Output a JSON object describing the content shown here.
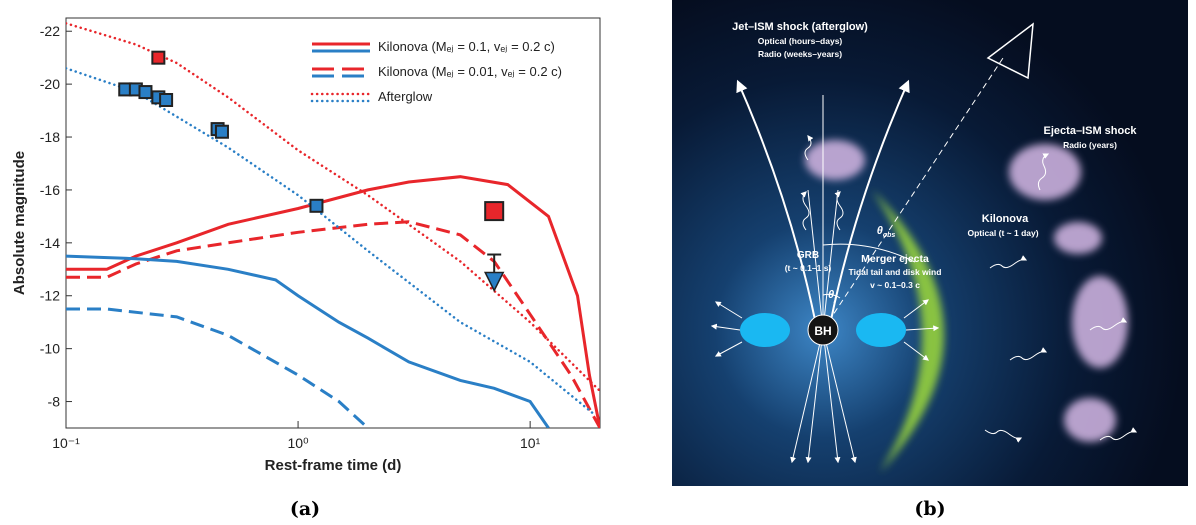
{
  "chart_data": {
    "type": "line",
    "x_label": "Rest-frame time (d)",
    "y_label": "Absolute magnitude",
    "log_x": true,
    "xlim": [
      0.1,
      20
    ],
    "ylim": [
      -7,
      -22.5
    ],
    "xticks": [
      {
        "value": 0.1,
        "label": "10⁻¹"
      },
      {
        "value": 1,
        "label": "10⁰"
      },
      {
        "value": 10,
        "label": "10¹"
      }
    ],
    "yticks": [
      -22,
      -20,
      -18,
      -16,
      -14,
      -12,
      -10,
      -8
    ],
    "legend_position": "upper right",
    "legend": [
      {
        "name": "Kilonova (Mₑⱼ = 0.1, vₑⱼ = 0.2 c)",
        "style": "solid",
        "colors": [
          "#e8262b",
          "#2a7fc6"
        ]
      },
      {
        "name": "Kilonova (Mₑⱼ = 0.01, vₑⱼ = 0.2 c)",
        "style": "dashed",
        "colors": [
          "#e8262b",
          "#2a7fc6"
        ]
      },
      {
        "name": "Afterglow",
        "style": "dotted",
        "colors": [
          "#e8262b",
          "#2a7fc6"
        ]
      }
    ],
    "series": [
      {
        "color": "#e8262b",
        "style": "solid",
        "x": [
          0.1,
          0.15,
          0.2,
          0.3,
          0.5,
          1,
          2,
          3,
          5,
          8,
          12,
          16,
          18,
          20
        ],
        "y": [
          -13,
          -13,
          -13.5,
          -14,
          -14.7,
          -15.3,
          -16,
          -16.3,
          -16.5,
          -16.2,
          -15,
          -12,
          -9,
          -7
        ]
      },
      {
        "color": "#e8262b",
        "style": "dashed",
        "x": [
          0.1,
          0.15,
          0.2,
          0.3,
          0.5,
          1,
          2,
          3,
          5,
          7,
          10,
          15,
          20
        ],
        "y": [
          -12.7,
          -12.7,
          -13.2,
          -13.7,
          -14,
          -14.4,
          -14.7,
          -14.8,
          -14.3,
          -13.3,
          -11.3,
          -9,
          -7
        ]
      },
      {
        "color": "#2a7fc6",
        "style": "solid",
        "x": [
          0.1,
          0.2,
          0.3,
          0.5,
          0.8,
          1,
          1.5,
          2,
          3,
          5,
          7,
          10,
          12
        ],
        "y": [
          -13.5,
          -13.4,
          -13.3,
          -13,
          -12.6,
          -12,
          -11,
          -10.4,
          -9.5,
          -8.8,
          -8.5,
          -8,
          -7
        ]
      },
      {
        "color": "#2a7fc6",
        "style": "dashed",
        "x": [
          0.1,
          0.15,
          0.3,
          0.5,
          1,
          1.5,
          2
        ],
        "y": [
          -11.5,
          -11.5,
          -11.2,
          -10.5,
          -9,
          -8,
          -7
        ]
      },
      {
        "color": "#e8262b",
        "style": "dotted",
        "x": [
          0.1,
          0.2,
          0.3,
          0.5,
          1,
          2,
          5,
          10,
          20
        ],
        "y": [
          -22.3,
          -21.5,
          -20.8,
          -19.5,
          -17.5,
          -15.8,
          -13.3,
          -11,
          -8.4
        ]
      },
      {
        "color": "#2a7fc6",
        "style": "dotted",
        "x": [
          0.1,
          0.2,
          0.5,
          1,
          2,
          5,
          10,
          19
        ],
        "y": [
          -20.6,
          -19.7,
          -17.6,
          -15.8,
          -13.7,
          -11,
          -9.5,
          -7.5
        ]
      }
    ],
    "points": [
      {
        "color": "#2a7fc6",
        "marker": "square",
        "x": [
          0.18,
          0.2,
          0.22,
          0.25,
          0.27,
          0.45,
          0.47,
          1.2
        ],
        "y": [
          -19.8,
          -19.8,
          -19.7,
          -19.5,
          -19.4,
          -18.3,
          -18.2,
          -15.4
        ]
      },
      {
        "color": "#e8262b",
        "marker": "square",
        "x": [
          0.25
        ],
        "y": [
          -21
        ]
      },
      {
        "color": "#e8262b",
        "marker": "big-square",
        "x": [
          7
        ],
        "y": [
          -15.2
        ]
      },
      {
        "color": "#2a7fc6",
        "marker": "upper-limit",
        "x": [
          7
        ],
        "y": [
          -12.5
        ]
      }
    ]
  },
  "diagram": {
    "jet_shock": [
      "Jet–ISM shock (afterglow)",
      "Optical (hours–days)",
      "Radio (weeks–years)"
    ],
    "ejecta_shock": [
      "Ejecta–ISM shock",
      "Radio (years)"
    ],
    "grb": [
      "GRB",
      "(t ~ 0.1–1 s)"
    ],
    "theta_obs": {
      "symbol": "θ",
      "subscript": "obs"
    },
    "theta_j": {
      "symbol": "θ",
      "subscript": "j"
    },
    "kilonova": [
      "Kilonova",
      "Optical (t ~ 1 day)"
    ],
    "merger_ejecta": [
      "Merger ejecta",
      "Tidal tail and disk wind",
      "v ~ 0.1–0.3 c"
    ],
    "bh": "BH"
  },
  "panel_labels": [
    "(a)",
    "(b)"
  ]
}
